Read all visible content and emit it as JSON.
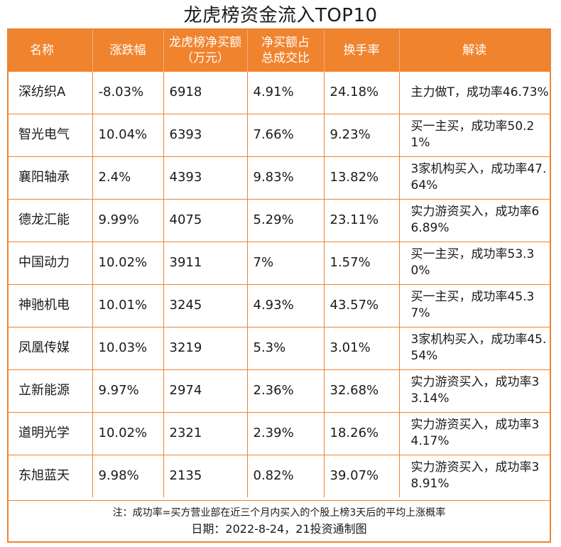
{
  "title": "龙虎榜资金流入TOP10",
  "headers": {
    "name": "名称",
    "change": "涨跌幅",
    "net_buy": "龙虎榜净买额（万元）",
    "ratio": "净买额占总成交比",
    "turnover": "换手率",
    "note": "解读"
  },
  "rows": [
    {
      "name": "深纺织A",
      "change": "-8.03%",
      "net_buy": "6918",
      "ratio": "4.91%",
      "turnover": "24.18%",
      "note": "主力做T，成功率46.73%"
    },
    {
      "name": "智光电气",
      "change": "10.04%",
      "net_buy": "6393",
      "ratio": "7.66%",
      "turnover": "9.23%",
      "note": "买一主买，成功率50.21%"
    },
    {
      "name": "襄阳轴承",
      "change": "2.4%",
      "net_buy": "4393",
      "ratio": "9.83%",
      "turnover": "13.82%",
      "note": "3家机构买入，成功率47.64%"
    },
    {
      "name": "德龙汇能",
      "change": "9.99%",
      "net_buy": "4075",
      "ratio": "5.29%",
      "turnover": "23.11%",
      "note": "实力游资买入，成功率66.89%"
    },
    {
      "name": "中国动力",
      "change": "10.02%",
      "net_buy": "3911",
      "ratio": "7%",
      "turnover": "1.57%",
      "note": "买一主买，成功率53.30%"
    },
    {
      "name": "神驰机电",
      "change": "10.01%",
      "net_buy": "3245",
      "ratio": "4.93%",
      "turnover": "43.57%",
      "note": "买一主买，成功率45.37%"
    },
    {
      "name": "凤凰传媒",
      "change": "10.03%",
      "net_buy": "3219",
      "ratio": "5.3%",
      "turnover": "3.01%",
      "note": "3家机构买入，成功率45.54%"
    },
    {
      "name": "立新能源",
      "change": "9.97%",
      "net_buy": "2974",
      "ratio": "2.36%",
      "turnover": "32.68%",
      "note": "实力游资买入，成功率33.14%"
    },
    {
      "name": "道明光学",
      "change": "10.02%",
      "net_buy": "2321",
      "ratio": "2.39%",
      "turnover": "18.26%",
      "note": "实力游资买入，成功率34.17%"
    },
    {
      "name": "东旭蓝天",
      "change": "9.98%",
      "net_buy": "2135",
      "ratio": "0.82%",
      "turnover": "39.07%",
      "note": "实力游资买入，成功率38.91%"
    }
  ],
  "footnote": "注：成功率=买方营业部在近三个月内买入的个股上榜3天后的平均上涨概率",
  "dateline": "日期：2022-8-24，21投资通制图",
  "colors": {
    "header_bg": "#f0832e",
    "border": "#f0832e",
    "header_text": "#ffffff"
  }
}
